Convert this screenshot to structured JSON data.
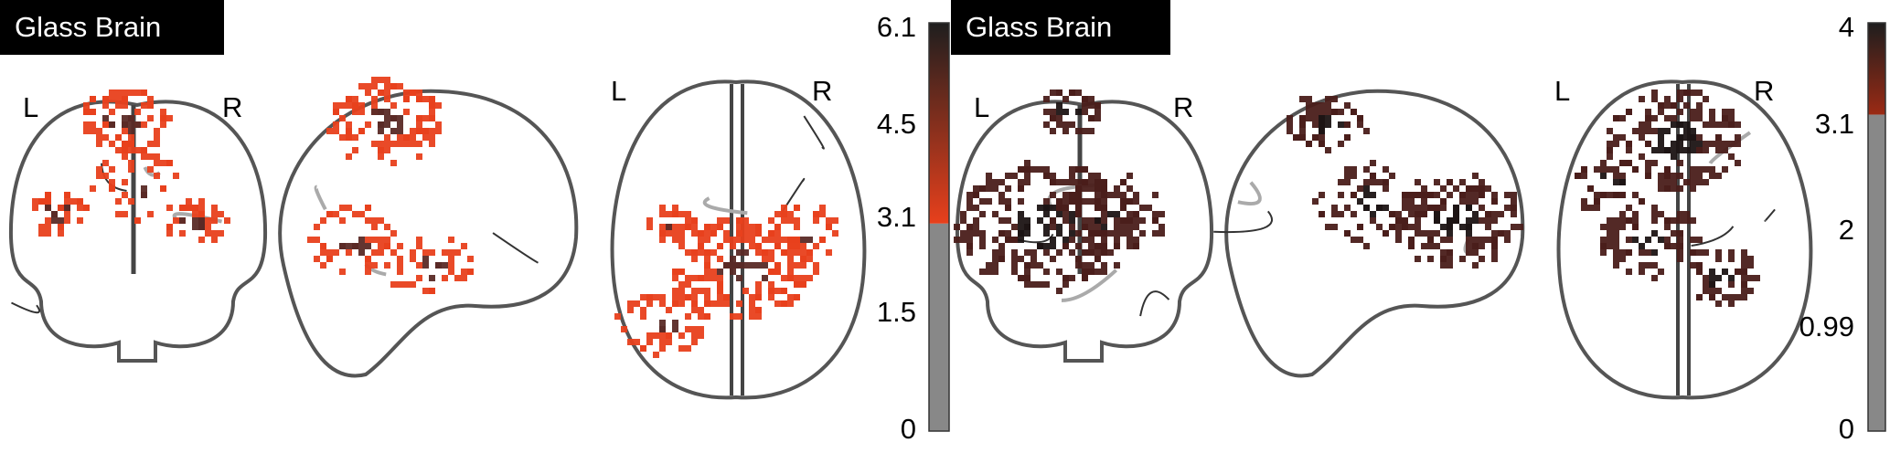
{
  "panels": [
    {
      "title": "Glass Brain",
      "left_label": "L",
      "right_label": "R",
      "colorbar": {
        "ticks": [
          "6.1",
          "4.5",
          "3.1",
          "1.5",
          "0"
        ],
        "max": 6.1,
        "threshold": 3.1,
        "colors": [
          "#1e1e1e",
          "#e8401c"
        ],
        "below_color": "#888888"
      },
      "blob_color": "#e8401c"
    },
    {
      "title": "Glass Brain",
      "left_label": "L",
      "right_label": "R",
      "colorbar": {
        "ticks": [
          "4",
          "3.1",
          "2",
          "0.99",
          "0"
        ],
        "max": 4,
        "threshold": 3.1,
        "colors": [
          "#1e1e1e",
          "#9b2a14"
        ],
        "below_color": "#888888"
      },
      "blob_color": "#4a1e1a"
    }
  ]
}
